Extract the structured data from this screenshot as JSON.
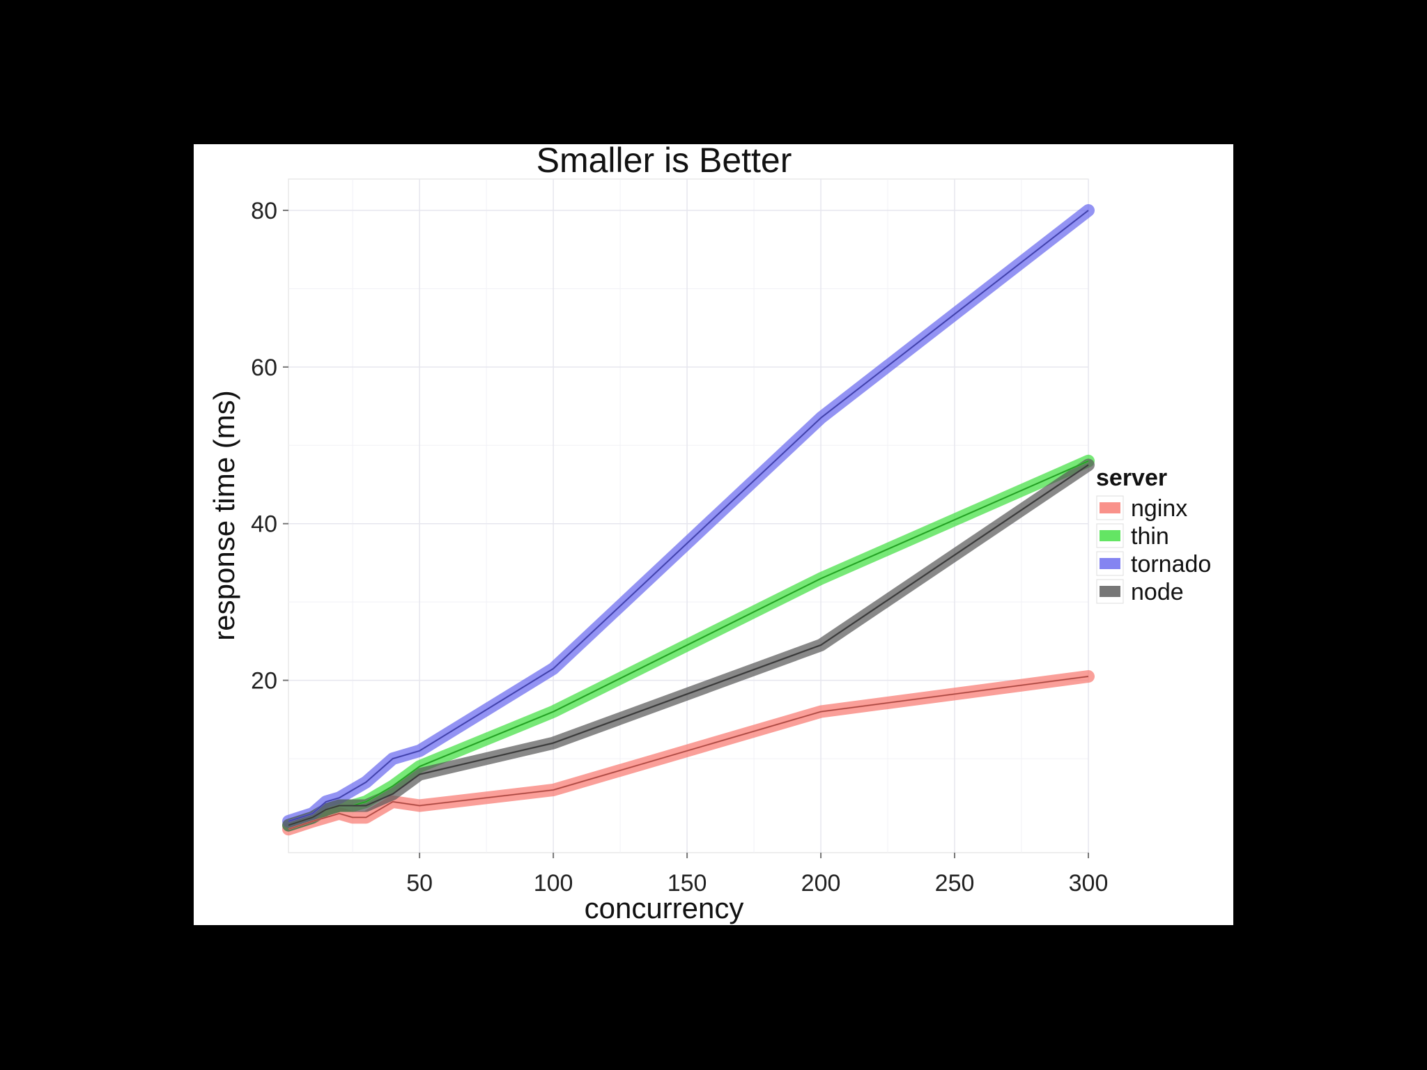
{
  "chart_data": {
    "type": "line",
    "title": "Smaller is Better",
    "xlabel": "concurrency",
    "ylabel": "response time (ms)",
    "xlim": [
      1,
      300
    ],
    "ylim": [
      -2,
      84
    ],
    "x_ticks": [
      50,
      100,
      150,
      200,
      250,
      300
    ],
    "y_ticks": [
      20,
      40,
      60,
      80
    ],
    "grid": true,
    "legend": {
      "title": "server",
      "placement": "right"
    },
    "series": [
      {
        "name": "nginx",
        "color": "#f8766d",
        "x": [
          1,
          10,
          15,
          20,
          25,
          30,
          40,
          50,
          100,
          200,
          300
        ],
        "y": [
          1,
          2,
          2.5,
          3,
          2.5,
          2.5,
          4.5,
          4,
          6,
          16,
          20.5
        ]
      },
      {
        "name": "thin",
        "color": "#3dde3d",
        "x": [
          1,
          10,
          15,
          20,
          25,
          30,
          40,
          50,
          100,
          200,
          300
        ],
        "y": [
          1.5,
          2.5,
          3.5,
          4,
          4,
          4.5,
          6.5,
          9,
          16,
          33,
          48
        ]
      },
      {
        "name": "tornado",
        "color": "#6565ee",
        "x": [
          1,
          10,
          15,
          20,
          25,
          30,
          40,
          50,
          100,
          200,
          300
        ],
        "y": [
          2,
          3,
          4.5,
          5,
          6,
          7,
          10,
          11,
          21.5,
          53.5,
          80
        ]
      },
      {
        "name": "node",
        "color": "#555555",
        "x": [
          1,
          10,
          15,
          20,
          25,
          30,
          40,
          50,
          100,
          200,
          300
        ],
        "y": [
          1.5,
          2.5,
          3.5,
          4,
          4,
          4,
          5.5,
          8,
          12,
          24.5,
          47.5
        ]
      }
    ]
  }
}
